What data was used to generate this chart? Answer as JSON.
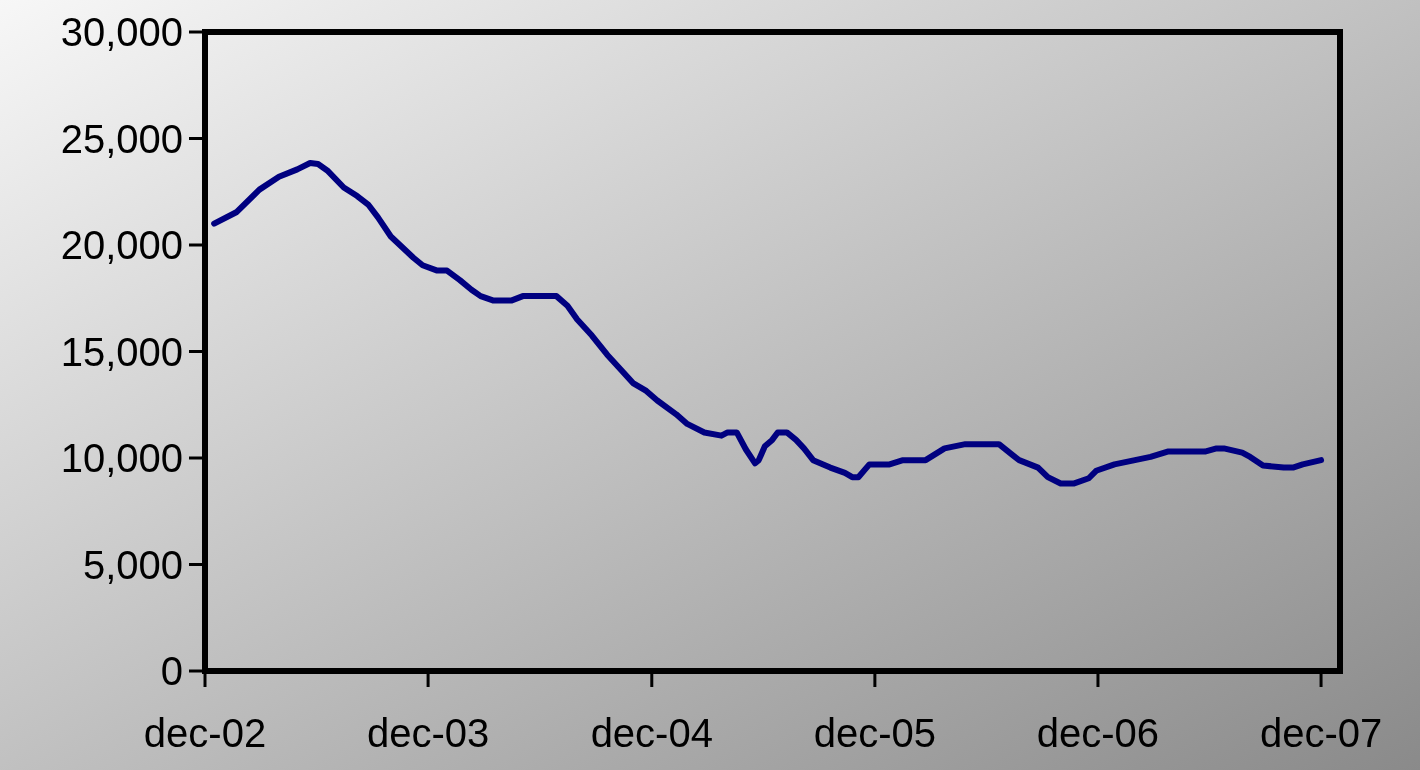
{
  "chart_data": {
    "type": "line",
    "x": [
      "2002-12-16",
      "2003-01-22",
      "2003-02-28",
      "2003-04-01",
      "2003-05-01",
      "2003-05-22",
      "2003-06-04",
      "2003-06-19",
      "2003-07-16",
      "2003-08-07",
      "2003-08-25",
      "2003-09-10",
      "2003-10-01",
      "2003-11-07",
      "2003-11-22",
      "2003-12-16",
      "2004-01-01",
      "2004-01-22",
      "2004-02-10",
      "2004-02-25",
      "2004-03-16",
      "2004-04-16",
      "2004-05-04",
      "2004-06-28",
      "2004-07-16",
      "2004-08-01",
      "2004-08-25",
      "2004-09-19",
      "2004-10-13",
      "2004-11-01",
      "2004-11-22",
      "2004-12-10",
      "2005-01-10",
      "2005-01-28",
      "2005-02-25",
      "2005-03-25",
      "2005-04-04",
      "2005-04-19",
      "2005-05-04",
      "2005-05-19",
      "2005-05-25",
      "2005-06-04",
      "2005-06-16",
      "2005-06-25",
      "2005-07-10",
      "2005-07-25",
      "2005-08-07",
      "2005-08-22",
      "2005-09-19",
      "2005-10-13",
      "2005-10-25",
      "2005-11-04",
      "2005-11-22",
      "2005-12-25",
      "2006-01-16",
      "2006-02-22",
      "2006-03-25",
      "2006-04-28",
      "2006-06-22",
      "2006-07-16",
      "2006-07-25",
      "2006-08-25",
      "2006-09-10",
      "2006-10-01",
      "2006-10-22",
      "2006-11-16",
      "2006-11-28",
      "2006-12-28",
      "2007-02-25",
      "2007-03-25",
      "2007-05-25",
      "2007-06-13",
      "2007-06-25",
      "2007-07-25",
      "2007-08-07",
      "2007-08-28",
      "2007-10-01",
      "2007-10-16",
      "2007-11-01",
      "2007-12-01"
    ],
    "series": [
      {
        "color": "#000080",
        "values": [
          21000,
          21550,
          22600,
          23200,
          23550,
          23850,
          23800,
          23500,
          22700,
          22300,
          21900,
          21300,
          20400,
          19400,
          19050,
          18800,
          18800,
          18350,
          17900,
          17600,
          17400,
          17400,
          17600,
          17600,
          17150,
          16500,
          15750,
          14850,
          14100,
          13500,
          13150,
          12700,
          12050,
          11600,
          11200,
          11050,
          11200,
          11200,
          10400,
          9750,
          9900,
          10550,
          10850,
          11200,
          11200,
          10850,
          10450,
          9900,
          9550,
          9300,
          9100,
          9100,
          9700,
          9700,
          9900,
          9900,
          10450,
          10650,
          10650,
          10100,
          9900,
          9550,
          9100,
          8800,
          8800,
          9050,
          9400,
          9700,
          10050,
          10300,
          10300,
          10450,
          10450,
          10250,
          10050,
          9650,
          9550,
          9550,
          9700,
          9900
        ]
      }
    ],
    "xlim": [
      "2002-12-01",
      "2008-01-01"
    ],
    "xticks": [
      {
        "value": "2002-12-01",
        "label": "dec-02"
      },
      {
        "value": "2003-12-01",
        "label": "dec-03"
      },
      {
        "value": "2004-12-01",
        "label": "dec-04"
      },
      {
        "value": "2005-12-01",
        "label": "dec-05"
      },
      {
        "value": "2006-12-01",
        "label": "dec-06"
      },
      {
        "value": "2007-12-01",
        "label": "dec-07"
      }
    ],
    "ylim": [
      0,
      30000
    ],
    "yticks": [
      {
        "value": 0,
        "label": "0"
      },
      {
        "value": 5000,
        "label": "5,000"
      },
      {
        "value": 10000,
        "label": "10,000"
      },
      {
        "value": 15000,
        "label": "15,000"
      },
      {
        "value": 20000,
        "label": "20,000"
      },
      {
        "value": 25000,
        "label": "25,000"
      },
      {
        "value": 30000,
        "label": "30,000"
      }
    ],
    "grid": false,
    "marker": "none",
    "line_style": "solid"
  }
}
